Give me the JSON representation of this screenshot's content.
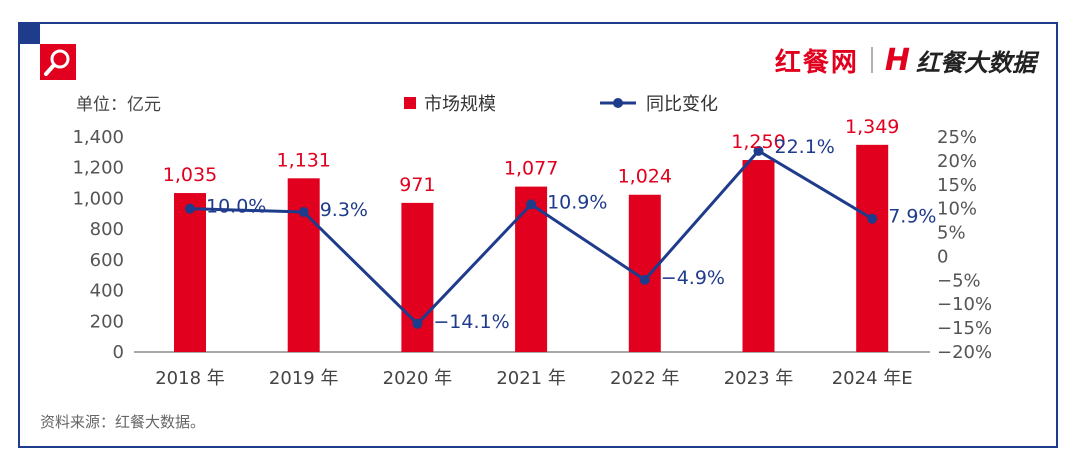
{
  "header": {
    "brand_name": "红餐网",
    "brand_logo": "H",
    "brand_sub": "红餐大数据",
    "unit_label": "单位：亿元"
  },
  "legend": {
    "bar_label": "市场规模",
    "line_label": "同比变化"
  },
  "footer": {
    "source": "资料来源：红餐大数据。"
  },
  "colors": {
    "bar": "#e1001e",
    "line": "#1f3b8c",
    "frame": "#1f3b8c"
  },
  "icons": {
    "badge": "search-icon"
  },
  "chart_data": {
    "type": "bar",
    "categories": [
      "2018 年",
      "2019 年",
      "2020 年",
      "2021 年",
      "2022 年",
      "2023 年",
      "2024 年E"
    ],
    "series": [
      {
        "name": "市场规模",
        "type": "bar",
        "axis": "left",
        "values": [
          1035,
          1131,
          971,
          1077,
          1024,
          1250,
          1349
        ],
        "labels": [
          "1,035",
          "1,131",
          "971",
          "1,077",
          "1,024",
          "1,250",
          "1,349"
        ]
      },
      {
        "name": "同比变化",
        "type": "line",
        "axis": "right",
        "values": [
          10.0,
          9.3,
          -14.1,
          10.9,
          -4.9,
          22.1,
          7.9
        ],
        "labels": [
          "10.0%",
          "9.3%",
          "−14.1%",
          "10.9%",
          "−4.9%",
          "22.1%",
          "7.9%"
        ]
      }
    ],
    "y_left": {
      "range": [
        0,
        1400
      ],
      "ticks": [
        0,
        200,
        400,
        600,
        800,
        1000,
        1200,
        1400
      ],
      "tick_labels": [
        "0",
        "200",
        "400",
        "600",
        "800",
        "1,000",
        "1,200",
        "1,400"
      ]
    },
    "y_right": {
      "range": [
        -20,
        25
      ],
      "ticks": [
        -20,
        -15,
        -10,
        -5,
        0,
        5,
        10,
        15,
        20,
        25
      ],
      "tick_labels": [
        "−20%",
        "−15%",
        "−10%",
        "−5%",
        "0",
        "5%",
        "10%",
        "15%",
        "20%",
        "25%"
      ]
    },
    "legend_position": "top-center",
    "grid": false
  }
}
